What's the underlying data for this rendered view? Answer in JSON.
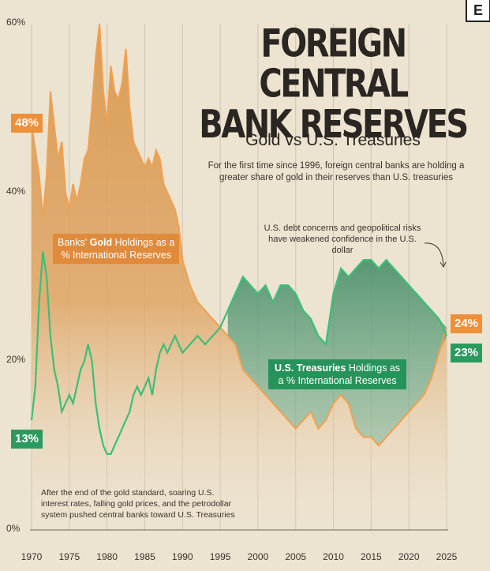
{
  "header": {
    "logo": "E",
    "title_line1": "FOREIGN CENTRAL",
    "title_line2": "BANK RESERVES",
    "subtitle": "Gold vs U.S. Treasuries",
    "description": "For the first time since 1996, foreign central banks are holding a greater share of gold in their reserves than U.S. treasuries"
  },
  "annotations": {
    "debt_note": "U.S. debt concerns and geopolitical risks have weakened confidence in the U.S. dollar",
    "gold_label_pre": "Banks'",
    "gold_label_bold": "Gold",
    "gold_label_post": "Holdings as a",
    "gold_label_line2": "% International Reserves",
    "treas_label_bold": "U.S. Treasuries",
    "treas_label_post": "Holdings as",
    "treas_label_line2": "a % International Reserves",
    "bottom_note": "After the end of the gold standard, soaring U.S. interest rates, falling gold prices, and the petrodollar system pushed central banks toward U.S. Treasuries"
  },
  "badges": {
    "gold_start": "48%",
    "treas_start": "13%",
    "gold_end": "24%",
    "treas_end": "23%"
  },
  "colors": {
    "gold": "#e68a3a",
    "gold_fill": "#e0a25a",
    "treasury": "#2f9b62",
    "treasury_fill": "#4a8a6a",
    "background": "#ece3d0"
  },
  "chart_data": {
    "type": "line",
    "title": "Foreign Central Bank Reserves",
    "subtitle": "Gold vs U.S. Treasuries",
    "xlabel": "",
    "ylabel": "",
    "x_range": [
      1970,
      2025
    ],
    "ylim": [
      0,
      60
    ],
    "y_ticks": [
      "0%",
      "20%",
      "40%",
      "60%"
    ],
    "y_tick_values": [
      0,
      20,
      40,
      60
    ],
    "x_ticks": [
      "1970",
      "1975",
      "1980",
      "1985",
      "1990",
      "1995",
      "2000",
      "2005",
      "2010",
      "2015",
      "2020",
      "2025"
    ],
    "x_tick_values": [
      1970,
      1975,
      1980,
      1985,
      1990,
      1995,
      2000,
      2005,
      2010,
      2015,
      2020,
      2025
    ],
    "grid": "vertical",
    "series": [
      {
        "name": "Banks' Gold Holdings as a % International Reserves",
        "x": [
          1970,
          1970.5,
          1971,
          1971.5,
          1972,
          1972.5,
          1973,
          1973.5,
          1974,
          1974.5,
          1975,
          1975.5,
          1976,
          1976.5,
          1977,
          1977.5,
          1978,
          1978.5,
          1979,
          1979.5,
          1980,
          1980.5,
          1981,
          1981.5,
          1982,
          1982.5,
          1983,
          1983.5,
          1984,
          1984.5,
          1985,
          1985.5,
          1986,
          1986.5,
          1987,
          1987.5,
          1988,
          1988.5,
          1989,
          1989.5,
          1990,
          1991,
          1992,
          1993,
          1994,
          1995,
          1996,
          1997,
          1998,
          1999,
          2000,
          2001,
          2002,
          2003,
          2004,
          2005,
          2006,
          2007,
          2008,
          2009,
          2010,
          2011,
          2012,
          2013,
          2014,
          2015,
          2016,
          2017,
          2018,
          2019,
          2020,
          2021,
          2022,
          2023,
          2024,
          2025
        ],
        "values": [
          48,
          45,
          42,
          37,
          42,
          52,
          48,
          44,
          46,
          40,
          38,
          41,
          39,
          41,
          44,
          45,
          50,
          56,
          60,
          52,
          48,
          55,
          52,
          51,
          53,
          57,
          50,
          46,
          45,
          44,
          43,
          44,
          43,
          45,
          44,
          41,
          40,
          39,
          38,
          36,
          32,
          29,
          27,
          26,
          25,
          24,
          23,
          22,
          19,
          18,
          17,
          16,
          15,
          14,
          13,
          12,
          13,
          14,
          12,
          13,
          15,
          16,
          15,
          12,
          11,
          11,
          10,
          11,
          12,
          13,
          14,
          15,
          16,
          18,
          21,
          24
        ]
      },
      {
        "name": "U.S. Treasuries Holdings as a % International Reserves",
        "x": [
          1970,
          1970.5,
          1971,
          1971.5,
          1972,
          1972.5,
          1973,
          1973.5,
          1974,
          1974.5,
          1975,
          1975.5,
          1976,
          1976.5,
          1977,
          1977.5,
          1978,
          1978.5,
          1979,
          1979.5,
          1980,
          1980.5,
          1981,
          1981.5,
          1982,
          1982.5,
          1983,
          1983.5,
          1984,
          1984.5,
          1985,
          1985.5,
          1986,
          1986.5,
          1987,
          1987.5,
          1988,
          1988.5,
          1989,
          1989.5,
          1990,
          1991,
          1992,
          1993,
          1994,
          1995,
          1996,
          1997,
          1998,
          1999,
          2000,
          2001,
          2002,
          2003,
          2004,
          2005,
          2006,
          2007,
          2008,
          2009,
          2010,
          2011,
          2012,
          2013,
          2014,
          2015,
          2016,
          2017,
          2018,
          2019,
          2020,
          2021,
          2022,
          2023,
          2024,
          2025
        ],
        "values": [
          13,
          17,
          27,
          33,
          30,
          23,
          19,
          17,
          14,
          15,
          16,
          15,
          17,
          19,
          20,
          22,
          20,
          15,
          12,
          10,
          9,
          9,
          10,
          11,
          12,
          13,
          14,
          16,
          17,
          16,
          17,
          18,
          16,
          19,
          21,
          22,
          21,
          22,
          23,
          22,
          21,
          22,
          23,
          22,
          23,
          24,
          26,
          28,
          30,
          29,
          28,
          29,
          27,
          29,
          29,
          28,
          26,
          25,
          23,
          22,
          28,
          31,
          30,
          31,
          32,
          32,
          31,
          32,
          31,
          30,
          29,
          28,
          27,
          26,
          25,
          23
        ]
      }
    ]
  }
}
